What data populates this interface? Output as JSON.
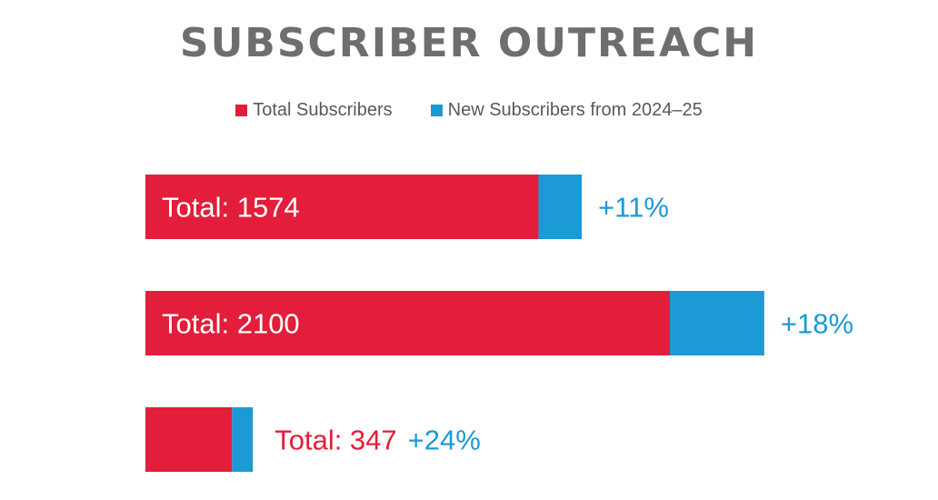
{
  "chart_data": {
    "type": "bar",
    "orientation": "horizontal",
    "stacked": true,
    "title": "SUBSCRIBER OUTREACH",
    "legend": [
      {
        "name": "Total Subscribers",
        "color": "#e21e3a"
      },
      {
        "name": "New Subscribers from 2024–25",
        "color": "#1b9ad6"
      }
    ],
    "rows": [
      {
        "total": 1574,
        "total_label": "Total: 1574",
        "growth_label": "+11%",
        "growth_pct": 11,
        "label_inside": true
      },
      {
        "total": 2100,
        "total_label": "Total: 2100",
        "growth_label": "+18%",
        "growth_pct": 18,
        "label_inside": true
      },
      {
        "total": 347,
        "total_label": "Total: 347",
        "growth_label": "+24%",
        "growth_pct": 24,
        "label_inside": false
      }
    ],
    "xlim": [
      0,
      2100
    ]
  }
}
